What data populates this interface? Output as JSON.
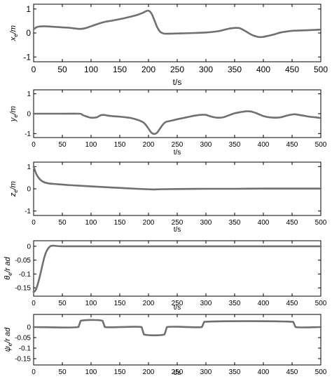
{
  "chart_data": [
    {
      "type": "line",
      "ylabel_var": "x",
      "ylabel_sub": "e",
      "ylabel_unit": "m",
      "xlabel": "t/s",
      "xlim": [
        0,
        500
      ],
      "ylim": [
        -1.2,
        1.2
      ],
      "xticks": [
        0,
        50,
        100,
        150,
        200,
        250,
        300,
        350,
        400,
        450,
        500
      ],
      "yticks": [
        -1,
        0,
        1
      ],
      "ytick_labels": [
        "-1",
        "0",
        "1"
      ],
      "grid": false,
      "series": [
        {
          "color": "#707070",
          "x": [
            0,
            5,
            10,
            20,
            40,
            60,
            80,
            90,
            100,
            120,
            140,
            160,
            180,
            190,
            195,
            200,
            205,
            210,
            215,
            220,
            225,
            230,
            250,
            280,
            300,
            320,
            330,
            340,
            350,
            355,
            360,
            370,
            380,
            390,
            395,
            400,
            410,
            420,
            430,
            440,
            450,
            460,
            480,
            500
          ],
          "y": [
            0.15,
            0.24,
            0.27,
            0.28,
            0.25,
            0.22,
            0.17,
            0.2,
            0.28,
            0.44,
            0.53,
            0.63,
            0.75,
            0.84,
            0.9,
            0.93,
            0.82,
            0.55,
            0.25,
            0.06,
            -0.01,
            -0.03,
            -0.02,
            0.0,
            0.02,
            0.07,
            0.12,
            0.18,
            0.21,
            0.21,
            0.19,
            0.06,
            -0.08,
            -0.16,
            -0.17,
            -0.16,
            -0.11,
            -0.05,
            0.02,
            0.06,
            0.09,
            0.1,
            0.12,
            0.14
          ]
        }
      ]
    },
    {
      "type": "line",
      "ylabel_var": "y",
      "ylabel_sub": "e",
      "ylabel_unit": "m",
      "xlabel": "t/s",
      "xlim": [
        0,
        500
      ],
      "ylim": [
        -1.2,
        1.2
      ],
      "xticks": [
        0,
        50,
        100,
        150,
        200,
        250,
        300,
        350,
        400,
        450,
        500
      ],
      "yticks": [
        -1,
        0,
        1
      ],
      "ytick_labels": [
        "-1",
        "0",
        "1"
      ],
      "grid": false,
      "series": [
        {
          "color": "#707070",
          "x": [
            0,
            50,
            80,
            85,
            90,
            100,
            110,
            115,
            120,
            125,
            130,
            140,
            150,
            160,
            170,
            180,
            190,
            195,
            200,
            205,
            210,
            215,
            220,
            225,
            230,
            240,
            250,
            260,
            270,
            280,
            290,
            295,
            300,
            310,
            320,
            330,
            340,
            350,
            360,
            370,
            375,
            380,
            390,
            400,
            410,
            420,
            430,
            440,
            450,
            455,
            460,
            470,
            480,
            490,
            500
          ],
          "y": [
            0.0,
            0.0,
            0.0,
            -0.06,
            -0.12,
            -0.2,
            -0.18,
            -0.1,
            -0.06,
            -0.07,
            -0.1,
            -0.13,
            -0.15,
            -0.18,
            -0.22,
            -0.3,
            -0.42,
            -0.55,
            -0.75,
            -0.95,
            -1.02,
            -0.95,
            -0.75,
            -0.55,
            -0.42,
            -0.35,
            -0.28,
            -0.22,
            -0.16,
            -0.1,
            -0.06,
            -0.05,
            -0.06,
            -0.15,
            -0.2,
            -0.18,
            -0.08,
            0.02,
            0.08,
            0.12,
            0.12,
            0.1,
            0.0,
            -0.12,
            -0.18,
            -0.2,
            -0.18,
            -0.1,
            -0.04,
            -0.03,
            -0.05,
            -0.1,
            -0.15,
            -0.18,
            -0.22
          ]
        }
      ]
    },
    {
      "type": "line",
      "ylabel_var": "z",
      "ylabel_sub": "e",
      "ylabel_unit": "m",
      "xlabel": "t/s",
      "xlim": [
        0,
        500
      ],
      "ylim": [
        -1.2,
        1.2
      ],
      "xticks": [
        0,
        50,
        100,
        150,
        200,
        250,
        300,
        350,
        400,
        450,
        500
      ],
      "yticks": [
        -1,
        0,
        1
      ],
      "ytick_labels": [
        "-1",
        "0",
        "1"
      ],
      "grid": false,
      "series": [
        {
          "color": "#707070",
          "x": [
            0,
            2,
            5,
            10,
            15,
            20,
            25,
            30,
            40,
            50,
            60,
            80,
            100,
            120,
            150,
            180,
            200,
            210,
            220,
            250,
            300,
            350,
            400,
            450,
            500
          ],
          "y": [
            1.0,
            0.85,
            0.65,
            0.45,
            0.34,
            0.28,
            0.25,
            0.23,
            0.21,
            0.19,
            0.17,
            0.14,
            0.11,
            0.08,
            0.04,
            0.0,
            -0.02,
            -0.03,
            -0.02,
            -0.01,
            0.0,
            0.0,
            0.01,
            0.01,
            0.01
          ]
        }
      ]
    },
    {
      "type": "line",
      "ylabel_var": "θ",
      "ylabel_sub": "e",
      "ylabel_unit": "r ad",
      "xlabel": "t/s",
      "xlim": [
        0,
        500
      ],
      "ylim": [
        -0.18,
        0.02
      ],
      "xticks": [
        0,
        50,
        100,
        150,
        200,
        250,
        300,
        350,
        400,
        450,
        500
      ],
      "yticks": [
        0,
        -0.05,
        -0.1,
        -0.15
      ],
      "ytick_labels": [
        "0",
        "-0.05",
        "-0.1",
        "-0.15"
      ],
      "grid": false,
      "series": [
        {
          "color": "#707070",
          "x": [
            0,
            3,
            6,
            10,
            14,
            18,
            22,
            26,
            30,
            35,
            40,
            50,
            60,
            100,
            200,
            300,
            400,
            500
          ],
          "y": [
            -0.165,
            -0.16,
            -0.145,
            -0.115,
            -0.08,
            -0.045,
            -0.02,
            -0.006,
            0.001,
            0.002,
            0.001,
            0.0,
            0.0,
            0.0,
            0.0,
            0.0,
            0.0,
            0.0
          ]
        }
      ]
    },
    {
      "type": "line",
      "ylabel_var": "ψ",
      "ylabel_sub": "e",
      "ylabel_unit": "r ad",
      "xlabel": "t/s",
      "xlim": [
        0,
        500
      ],
      "ylim": [
        -0.18,
        0.06
      ],
      "xticks": [
        0,
        50,
        100,
        150,
        200,
        250,
        300,
        350,
        400,
        450,
        500
      ],
      "yticks": [
        0,
        -0.05,
        -0.1,
        -0.15
      ],
      "ytick_labels": [
        "0",
        "-0.05",
        "-0.1",
        "-0.15"
      ],
      "grid": false,
      "series": [
        {
          "color": "#707070",
          "x": [
            0,
            78,
            82,
            120,
            124,
            188,
            192,
            228,
            232,
            293,
            297,
            452,
            456,
            500
          ],
          "y": [
            0.0,
            0.0,
            0.03,
            0.03,
            0.0,
            0.0,
            -0.035,
            -0.035,
            0.0,
            0.0,
            0.025,
            0.025,
            0.0,
            0.0
          ]
        }
      ]
    }
  ]
}
